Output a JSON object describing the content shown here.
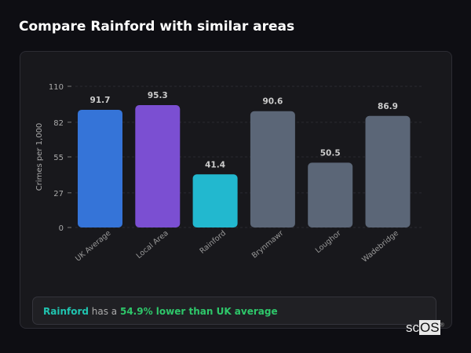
{
  "title": "Compare Rainford with similar areas",
  "chart_data": {
    "type": "bar",
    "categories": [
      "UK Average",
      "Local Area",
      "Rainford",
      "Brynmawr",
      "Loughor",
      "Wadebridge"
    ],
    "values": [
      91.7,
      95.3,
      41.4,
      90.6,
      50.5,
      86.9
    ],
    "colors": [
      "#3574d8",
      "#7b4fd2",
      "#22b8cf",
      "#5b6677",
      "#5b6677",
      "#5b6677"
    ],
    "ylabel": "Crimes per 1,000",
    "xlabel": "",
    "ylim": [
      0,
      110
    ],
    "yticks": [
      0,
      27,
      55,
      82,
      110
    ],
    "grid": true
  },
  "info": {
    "area": "Rainford",
    "middle": " has a ",
    "comparison": "54.9% lower than UK average"
  },
  "logo": {
    "prefix": "sc",
    "suffix": "OS",
    "mark": "®"
  }
}
